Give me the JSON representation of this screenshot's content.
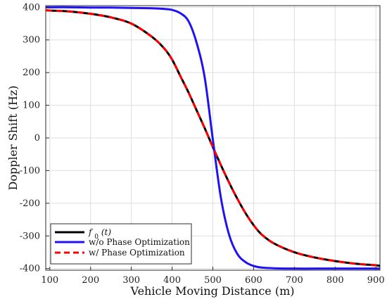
{
  "chart_data": {
    "type": "line",
    "title": "",
    "xlabel": "Vehicle Moving Distance (m)",
    "ylabel": "Doppler Shift (Hz)",
    "xlim": [
      90,
      910
    ],
    "ylim": [
      -405,
      405
    ],
    "xticks": [
      100,
      200,
      300,
      400,
      500,
      600,
      700,
      800,
      900
    ],
    "yticks": [
      400,
      300,
      200,
      100,
      0,
      -100,
      -200,
      -300,
      -400
    ],
    "grid": true,
    "legend_position": "bottom-left",
    "x": [
      90,
      100,
      150,
      200,
      250,
      300,
      350,
      380,
      400,
      420,
      440,
      460,
      480,
      500,
      520,
      540,
      560,
      580,
      600,
      620,
      650,
      700,
      750,
      800,
      850,
      900,
      910
    ],
    "series": [
      {
        "name": "f0(t)",
        "legend_main": "f",
        "legend_sub": "0",
        "legend_tail": "(t)",
        "color": "#000000",
        "dash": "solid",
        "values": [
          391,
          390,
          387,
          380,
          369,
          350,
          310,
          275,
          240,
          190,
          140,
          85,
          30,
          -28,
          -84,
          -137,
          -186,
          -230,
          -267,
          -296,
          -323,
          -350,
          -366,
          -377,
          -385,
          -390,
          -392
        ]
      },
      {
        "name": "w/o Phase Optimization",
        "color": "#1f12f5",
        "dash": "solid",
        "values": [
          400,
          400,
          400,
          399,
          399,
          398,
          397,
          395,
          392,
          382,
          358,
          292,
          185,
          -5,
          -185,
          -297,
          -355,
          -380,
          -392,
          -397,
          -399,
          -400,
          -400,
          -400,
          -400,
          -400,
          -400
        ]
      },
      {
        "name": "w/ Phase Optimization",
        "color": "#ff0000",
        "dash": "dashed",
        "values": [
          391,
          390,
          387,
          380,
          369,
          350,
          310,
          275,
          240,
          190,
          140,
          85,
          30,
          -28,
          -84,
          -137,
          -186,
          -230,
          -267,
          -296,
          -323,
          -350,
          -366,
          -377,
          -385,
          -390,
          -392
        ]
      }
    ]
  }
}
